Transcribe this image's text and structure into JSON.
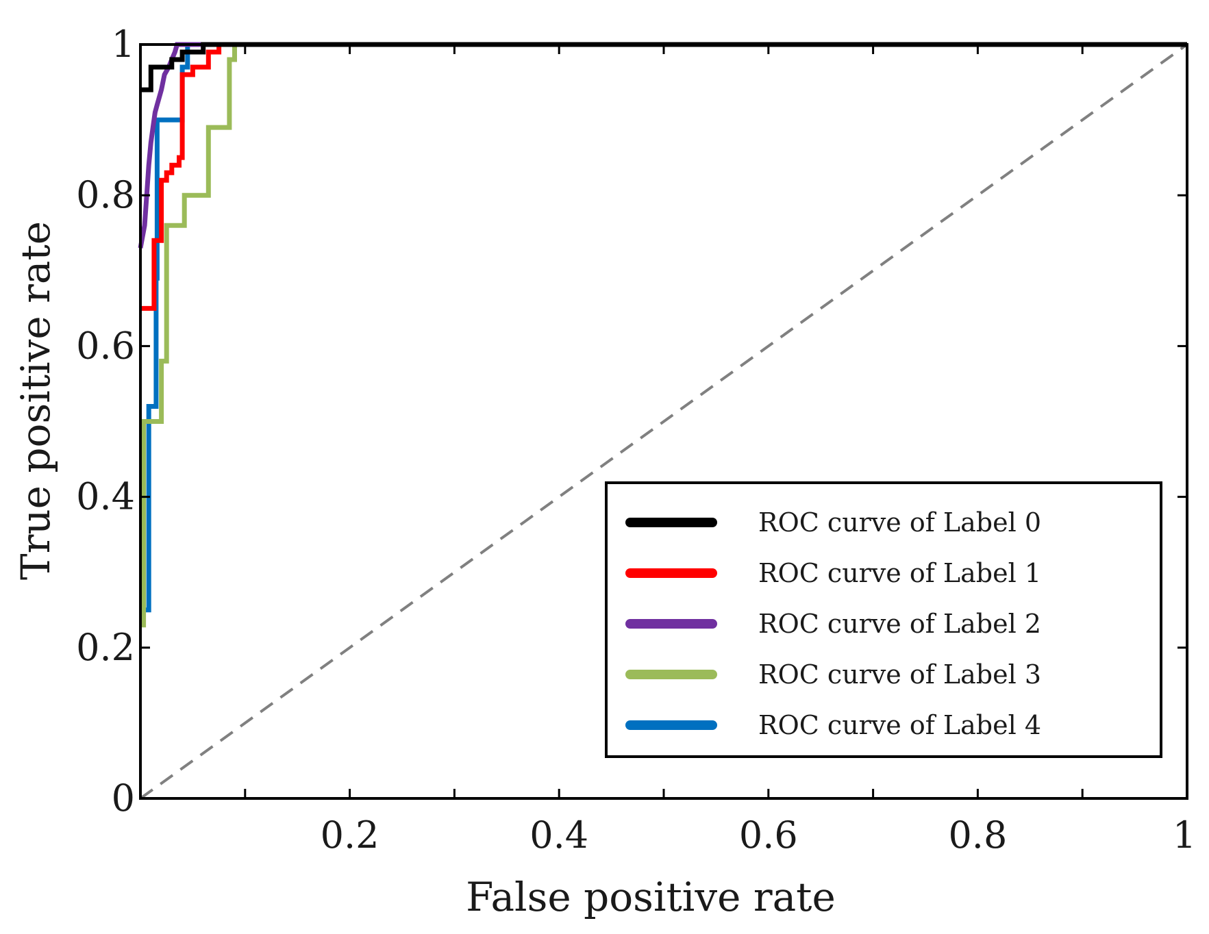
{
  "chart_data": {
    "type": "line",
    "title": "",
    "xlabel": "False positive rate",
    "ylabel": "True positive rate",
    "xlim": [
      0,
      1
    ],
    "ylim": [
      0,
      1
    ],
    "xticks": [
      0.1,
      0.2,
      0.3,
      0.4,
      0.5,
      0.6,
      0.7,
      0.8,
      0.9,
      1.0
    ],
    "xtick_labels": [
      "0.2",
      "0.4",
      "0.6",
      "0.8",
      "1"
    ],
    "xtick_label_values": [
      0.2,
      0.4,
      0.6,
      0.8,
      1.0
    ],
    "yticks": [
      0,
      0.2,
      0.4,
      0.6,
      0.8,
      1.0
    ],
    "ytick_labels": [
      "0",
      "0.2",
      "0.4",
      "0.6",
      "0.8",
      "1"
    ],
    "grid": false,
    "legend_position": "lower-right",
    "diagonal": {
      "color": "#808080",
      "style": "dashed",
      "points": [
        [
          0,
          0
        ],
        [
          1,
          1
        ]
      ]
    },
    "series": [
      {
        "name": "ROC curve of Label 0",
        "color": "#000000",
        "points": [
          [
            0,
            0.94
          ],
          [
            0.01,
            0.94
          ],
          [
            0.01,
            0.97
          ],
          [
            0.02,
            0.97
          ],
          [
            0.03,
            0.97
          ],
          [
            0.03,
            0.98
          ],
          [
            0.04,
            0.98
          ],
          [
            0.04,
            0.99
          ],
          [
            0.06,
            0.99
          ],
          [
            0.06,
            1.0
          ],
          [
            1.0,
            1.0
          ]
        ]
      },
      {
        "name": "ROC curve of Label 1",
        "color": "#ff0000",
        "points": [
          [
            0,
            0.65
          ],
          [
            0.013,
            0.65
          ],
          [
            0.013,
            0.74
          ],
          [
            0.02,
            0.74
          ],
          [
            0.02,
            0.82
          ],
          [
            0.025,
            0.82
          ],
          [
            0.025,
            0.83
          ],
          [
            0.03,
            0.83
          ],
          [
            0.03,
            0.84
          ],
          [
            0.037,
            0.84
          ],
          [
            0.037,
            0.85
          ],
          [
            0.04,
            0.85
          ],
          [
            0.04,
            0.96
          ],
          [
            0.05,
            0.96
          ],
          [
            0.05,
            0.97
          ],
          [
            0.065,
            0.97
          ],
          [
            0.065,
            0.99
          ],
          [
            0.075,
            0.99
          ],
          [
            0.075,
            1.0
          ],
          [
            1.0,
            1.0
          ]
        ]
      },
      {
        "name": "ROC curve of Label 2",
        "color": "#7030a0",
        "points": [
          [
            0,
            0.73
          ],
          [
            0.004,
            0.76
          ],
          [
            0.006,
            0.8
          ],
          [
            0.008,
            0.84
          ],
          [
            0.01,
            0.87
          ],
          [
            0.012,
            0.89
          ],
          [
            0.014,
            0.91
          ],
          [
            0.016,
            0.92
          ],
          [
            0.018,
            0.93
          ],
          [
            0.02,
            0.94
          ],
          [
            0.023,
            0.96
          ],
          [
            0.027,
            0.97
          ],
          [
            0.03,
            0.98
          ],
          [
            0.033,
            0.99
          ],
          [
            0.035,
            1.0
          ],
          [
            1.0,
            1.0
          ]
        ]
      },
      {
        "name": "ROC curve of Label 3",
        "color": "#9bbb59",
        "points": [
          [
            0,
            0.23
          ],
          [
            0.003,
            0.23
          ],
          [
            0.003,
            0.5
          ],
          [
            0.02,
            0.5
          ],
          [
            0.02,
            0.58
          ],
          [
            0.025,
            0.58
          ],
          [
            0.025,
            0.76
          ],
          [
            0.042,
            0.76
          ],
          [
            0.042,
            0.8
          ],
          [
            0.065,
            0.8
          ],
          [
            0.065,
            0.89
          ],
          [
            0.085,
            0.89
          ],
          [
            0.085,
            0.98
          ],
          [
            0.09,
            0.98
          ],
          [
            0.09,
            1.0
          ],
          [
            1.0,
            1.0
          ]
        ]
      },
      {
        "name": "ROC curve of Label 4",
        "color": "#0070c0",
        "points": [
          [
            0,
            0.25
          ],
          [
            0.008,
            0.25
          ],
          [
            0.008,
            0.52
          ],
          [
            0.015,
            0.52
          ],
          [
            0.015,
            0.69
          ],
          [
            0.016,
            0.69
          ],
          [
            0.016,
            0.9
          ],
          [
            0.04,
            0.9
          ],
          [
            0.04,
            0.97
          ],
          [
            0.045,
            0.97
          ],
          [
            0.045,
            1.0
          ],
          [
            1.0,
            1.0
          ]
        ]
      }
    ]
  }
}
